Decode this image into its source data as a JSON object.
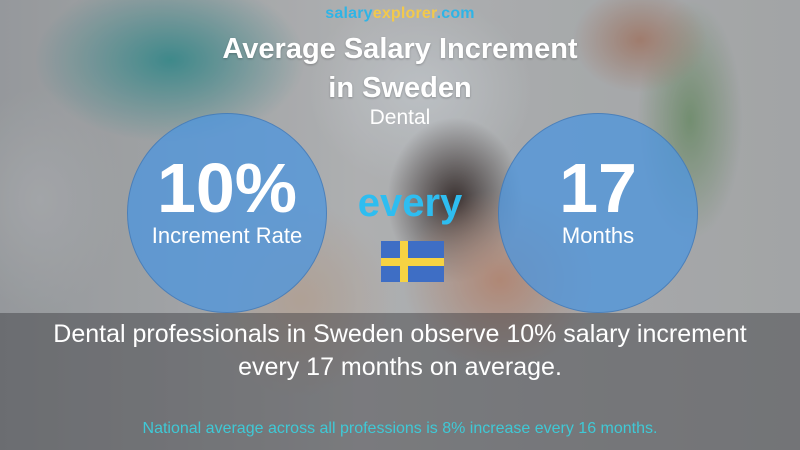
{
  "brand": {
    "part1": "salary",
    "part2": "explorer",
    "part3": ".com",
    "colors": {
      "blue": "#2fb4e6",
      "yellow": "#f2c94c"
    }
  },
  "header": {
    "title_line1": "Average Salary Increment",
    "title_line2": "in Sweden",
    "subtitle": "Dental"
  },
  "increment": {
    "value": "10%",
    "label": "Increment Rate"
  },
  "connector": {
    "text": "every",
    "flag": "sweden-flag-icon"
  },
  "period": {
    "value": "17",
    "label": "Months"
  },
  "description": {
    "line1": "Dental professionals in Sweden observe 10% salary increment",
    "line2": "every 17 months on average."
  },
  "footer": {
    "national": "National average across all professions is 8% increase every 16 months."
  },
  "colors": {
    "circle": "#5096dc",
    "every": "#2ebdf0",
    "national_text": "#3fc9d6",
    "flag_blue": "#3e6ec5",
    "flag_yellow": "#f6d343"
  }
}
